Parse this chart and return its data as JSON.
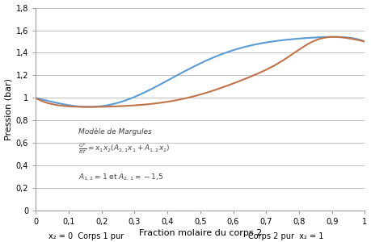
{
  "title": "",
  "xlabel": "Fraction molaire du corps 2",
  "ylabel": "Pression (bar)",
  "xlim": [
    0,
    1
  ],
  "ylim": [
    0,
    1.8
  ],
  "yticks": [
    0,
    0.2,
    0.4,
    0.6,
    0.8,
    1.0,
    1.2,
    1.4,
    1.6,
    1.8
  ],
  "ytick_labels": [
    "0",
    "0,2",
    "0,4",
    "0,6",
    "0,8",
    "1",
    "1,2",
    "1,4",
    "1,6",
    "1,8"
  ],
  "xticks": [
    0,
    0.1,
    0.2,
    0.3,
    0.4,
    0.5,
    0.6,
    0.7,
    0.8,
    0.9,
    1.0
  ],
  "xtick_labels": [
    "0",
    "0,1",
    "0,2",
    "0,3",
    "0,4",
    "0,5",
    "0,6",
    "0,7",
    "0,8",
    "0,9",
    "1"
  ],
  "xlabel_left": "x₂ = 0  Corps 1 pur",
  "xlabel_right": "Corps 2 pur  x₂ = 1",
  "A12": 1.0,
  "A21": -1.5,
  "P1sat": 1.0,
  "P2sat": 1.5,
  "color_bubble": "#5b9bd5",
  "color_dew": "#c0734a",
  "background_color": "#ffffff",
  "annotation_title": "Modèle de Margules",
  "annotation_line1": "$\\frac{G^E}{RT} = x_1 x_2 (A_{2,1} x_1 + A_{1,2} x_2)$",
  "annotation_line2": "$A_{1,2} = 1$ et $A_{2,1} = -1{,}5$",
  "gridcolor": "#c0c0c0",
  "linewidth": 1.5
}
